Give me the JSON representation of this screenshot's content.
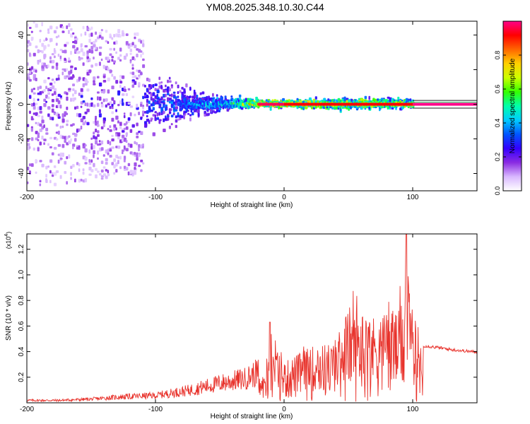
{
  "page": {
    "title": "YM08.2025.348.10.30.C44"
  },
  "chart_data": [
    {
      "type": "heatmap",
      "title": "YM08.2025.348.10.30.C44",
      "xlabel": "Height of straight line (km)",
      "ylabel": "Frequency (Hz)",
      "xlim": [
        -200,
        150
      ],
      "ylim": [
        -50,
        48
      ],
      "xticks": [
        -200,
        -100,
        0,
        100
      ],
      "yticks": [
        -40,
        -20,
        0,
        20,
        40
      ],
      "colorbar": {
        "label": "Normalized spectral amplitude",
        "range": [
          0,
          1
        ],
        "ticks": [
          0.0,
          0.2,
          0.4,
          0.6,
          0.8
        ],
        "colormap": [
          "#ffffff",
          "#d9b8ff",
          "#8a2be2",
          "#3300ff",
          "#0055ff",
          "#00ccff",
          "#00ffaa",
          "#33ff00",
          "#ccff00",
          "#ffd000",
          "#ff6600",
          "#ff0000",
          "#ff0088"
        ]
      },
      "description_points": [
        {
          "x": -200,
          "scatter_halfwidth_hz": 48,
          "peak_amplitude": 0.25
        },
        {
          "x": -150,
          "scatter_halfwidth_hz": 45,
          "peak_amplitude": 0.3
        },
        {
          "x": -110,
          "scatter_halfwidth_hz": 40,
          "peak_amplitude": 0.35
        },
        {
          "x": -75,
          "scatter_halfwidth_hz": 15,
          "peak_amplitude": 0.45
        },
        {
          "x": -45,
          "scatter_halfwidth_hz": 8,
          "peak_amplitude": 0.55
        },
        {
          "x": -20,
          "scatter_halfwidth_hz": 4,
          "peak_amplitude": 0.95
        },
        {
          "x": 0,
          "scatter_halfwidth_hz": 4,
          "peak_amplitude": 0.95
        },
        {
          "x": 50,
          "scatter_halfwidth_hz": 6,
          "peak_amplitude": 0.9
        },
        {
          "x": 100,
          "scatter_halfwidth_hz": 5,
          "peak_amplitude": 0.9
        },
        {
          "x": 150,
          "scatter_halfwidth_hz": 1,
          "peak_amplitude": 1.0
        }
      ]
    },
    {
      "type": "line",
      "xlabel": "Height of straight line (km)",
      "ylabel": "SNR (10 * v/v)",
      "scale_label": "(x10",
      "scale_exponent": "4",
      "xlim": [
        -200,
        150
      ],
      "ylim": [
        0,
        1.32
      ],
      "xticks": [
        -200,
        -100,
        0,
        100
      ],
      "yticks": [
        0.2,
        0.4,
        0.6,
        0.8,
        1.0,
        1.2
      ],
      "series": [
        {
          "name": "SNR",
          "color": "#e8322b",
          "x": [
            -200,
            -175,
            -150,
            -125,
            -100,
            -75,
            -50,
            -30,
            -15,
            -10,
            0,
            20,
            40,
            50,
            60,
            70,
            80,
            85,
            90,
            95,
            100,
            105,
            108,
            110,
            130,
            150
          ],
          "y": [
            0.02,
            0.02,
            0.03,
            0.05,
            0.06,
            0.1,
            0.16,
            0.2,
            0.28,
            0.6,
            0.4,
            0.55,
            0.6,
            0.95,
            0.9,
            0.85,
            0.9,
            0.9,
            0.9,
            1.32,
            0.85,
            0.75,
            0.45,
            0.45,
            0.42,
            0.4
          ]
        }
      ]
    }
  ]
}
